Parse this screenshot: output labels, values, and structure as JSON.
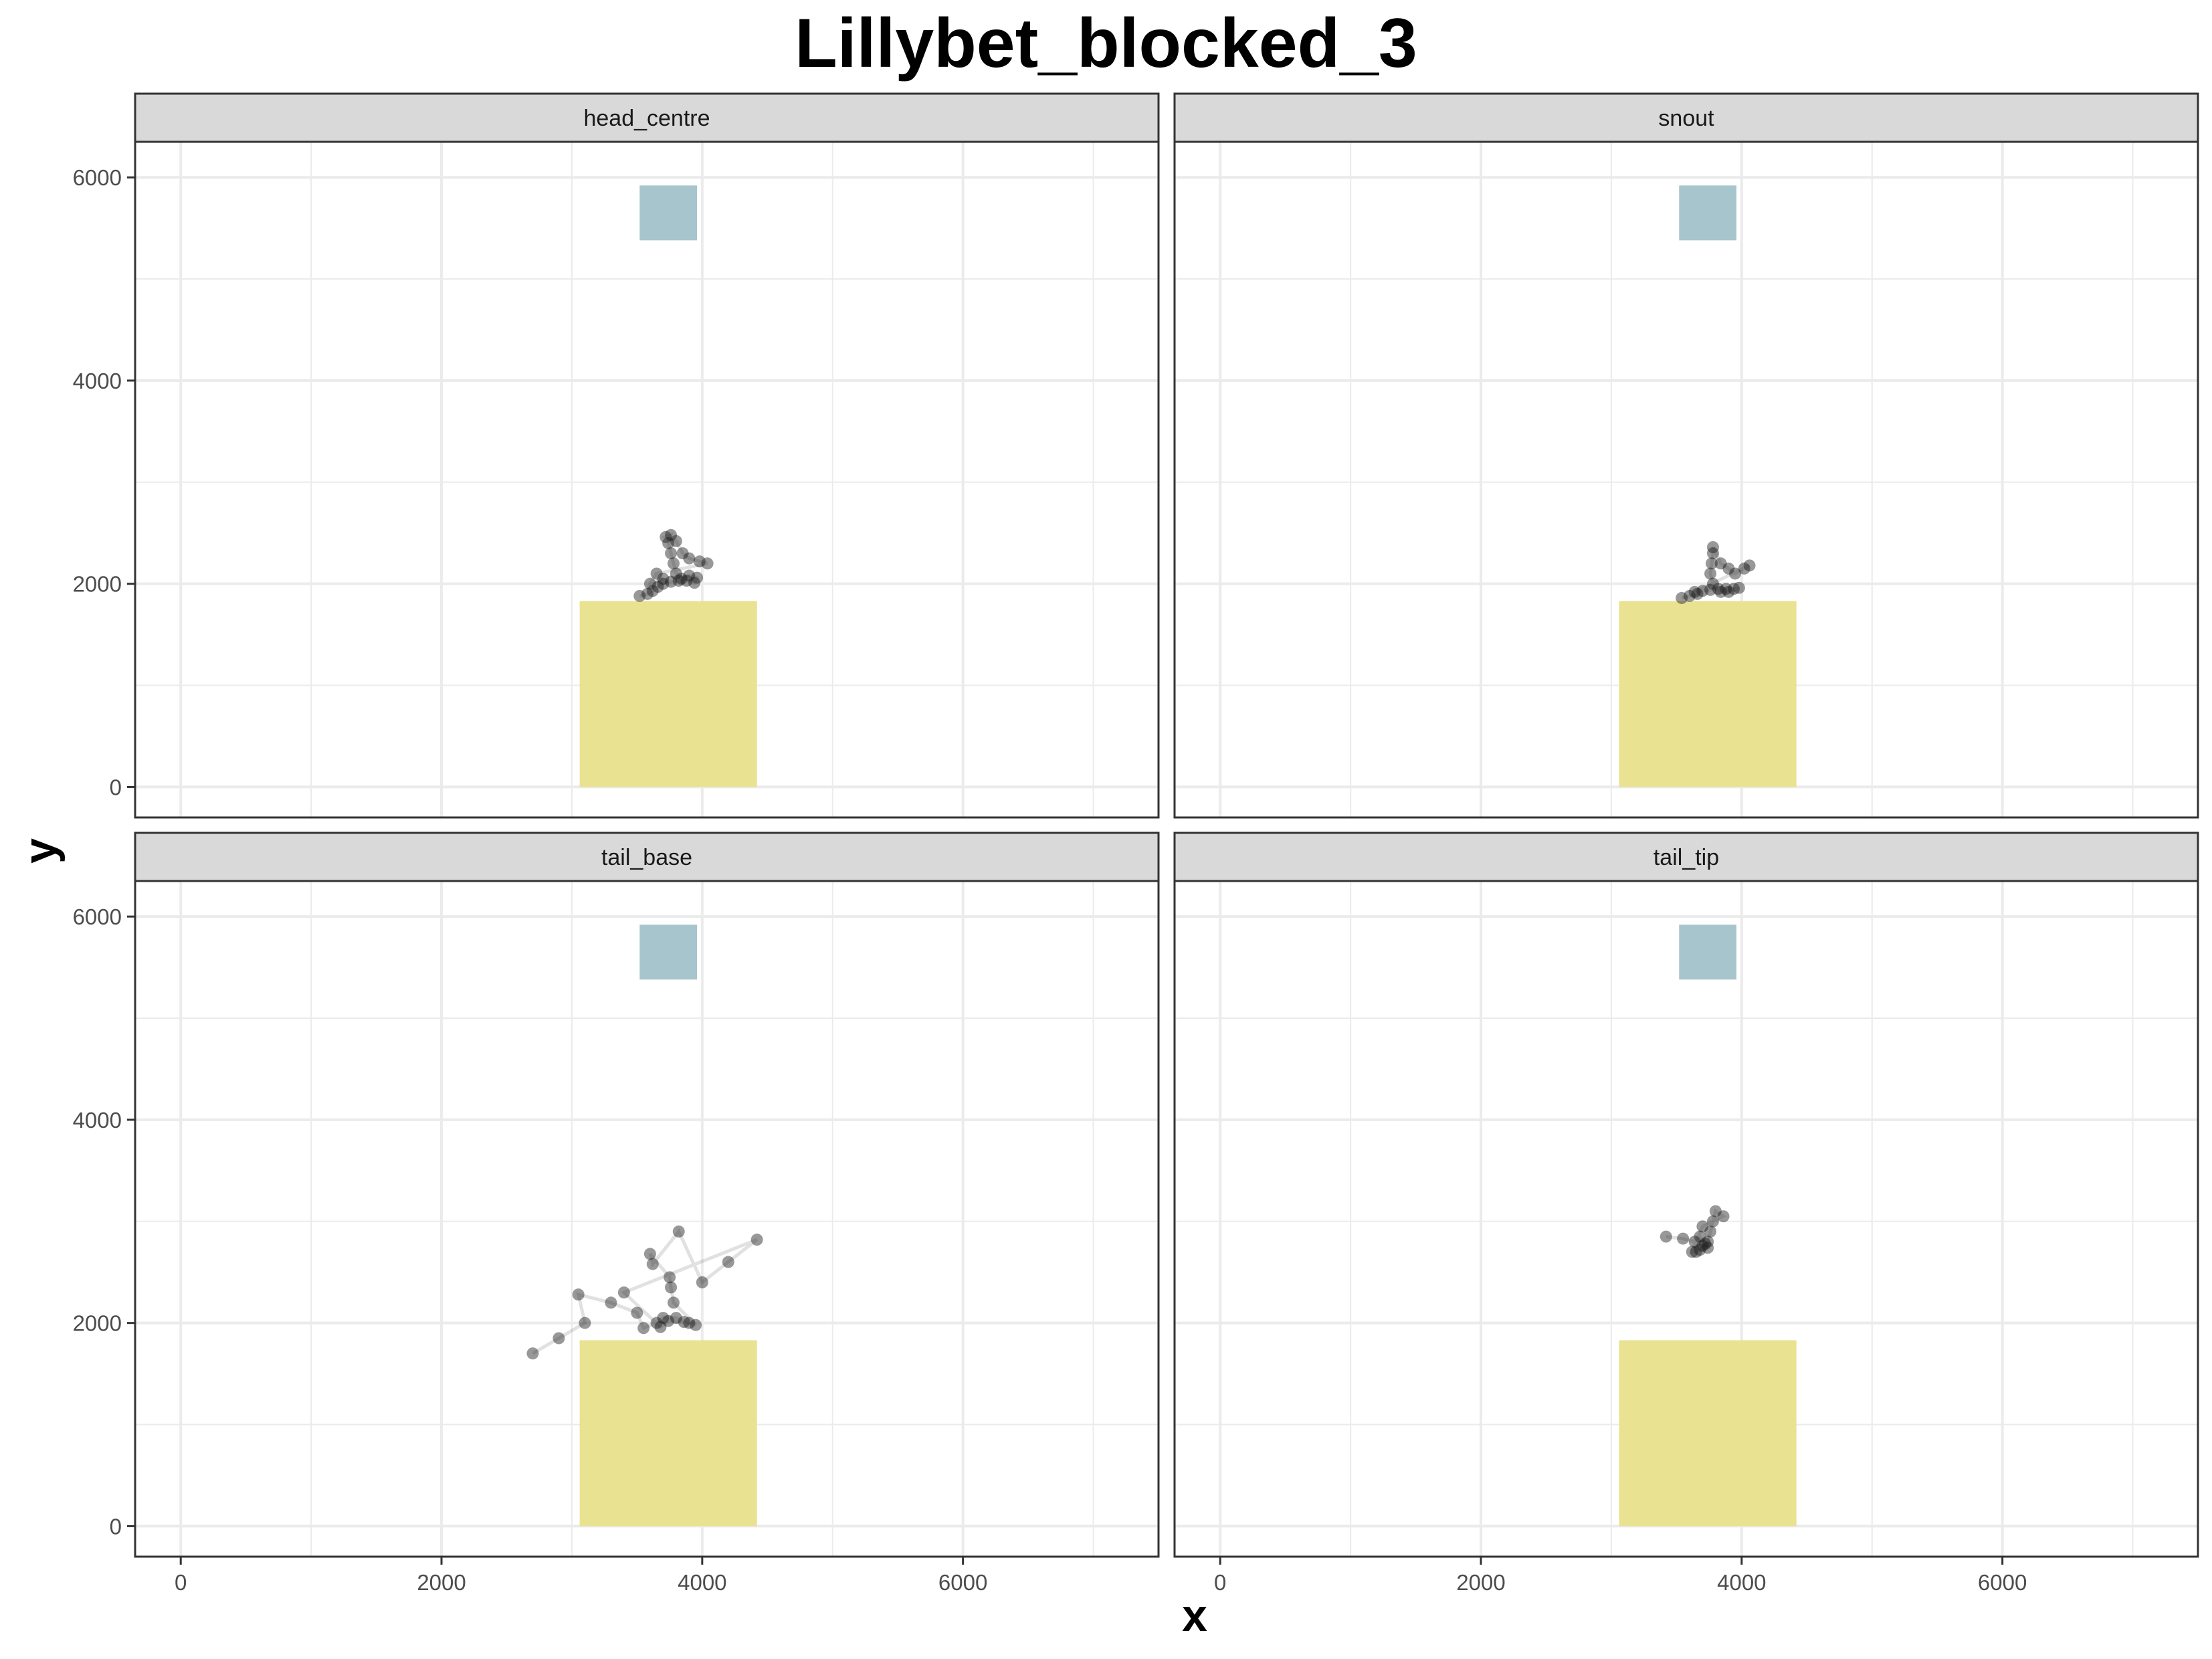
{
  "chart_data": {
    "type": "scatter",
    "title": "Lillybet_blocked_3",
    "xlabel": "x",
    "ylabel": "y",
    "xlim": [
      -350,
      7500
    ],
    "ylim": [
      -300,
      6350
    ],
    "x_ticks": [
      0,
      2000,
      4000,
      6000
    ],
    "y_ticks": [
      0,
      2000,
      4000,
      6000
    ],
    "x_tick_labels": [
      "0",
      "2000",
      "4000",
      "6000"
    ],
    "y_tick_labels": [
      "0",
      "2000",
      "4000",
      "6000"
    ],
    "grid": true,
    "legend": "none",
    "colors": {
      "points": "#1a1a1a",
      "blue_zone": "#a7c5cc",
      "yellow_zone": "#e8e291",
      "strip": "#d9d9d9",
      "grid": "#ebebeb"
    },
    "zones": [
      {
        "color": "blue_zone",
        "x": [
          3520,
          3960
        ],
        "y": [
          5380,
          5920
        ]
      },
      {
        "color": "yellow_zone",
        "x": [
          3060,
          4420
        ],
        "y": [
          0,
          1830
        ]
      }
    ],
    "panels": [
      {
        "name": "head_centre",
        "points": [
          [
            3520,
            1880
          ],
          [
            3580,
            1900
          ],
          [
            3620,
            1930
          ],
          [
            3660,
            1970
          ],
          [
            3700,
            2000
          ],
          [
            3760,
            2020
          ],
          [
            3820,
            2030
          ],
          [
            3880,
            2030
          ],
          [
            3940,
            2010
          ],
          [
            3960,
            2060
          ],
          [
            3900,
            2080
          ],
          [
            3840,
            2050
          ],
          [
            3800,
            2100
          ],
          [
            3780,
            2200
          ],
          [
            3760,
            2300
          ],
          [
            3740,
            2400
          ],
          [
            3760,
            2480
          ],
          [
            3720,
            2460
          ],
          [
            3800,
            2420
          ],
          [
            3850,
            2300
          ],
          [
            3900,
            2250
          ],
          [
            3980,
            2220
          ],
          [
            4040,
            2200
          ],
          [
            3650,
            2100
          ],
          [
            3600,
            2000
          ],
          [
            3700,
            2050
          ]
        ]
      },
      {
        "name": "snout",
        "points": [
          [
            3540,
            1860
          ],
          [
            3600,
            1880
          ],
          [
            3660,
            1900
          ],
          [
            3700,
            1930
          ],
          [
            3760,
            1940
          ],
          [
            3820,
            1950
          ],
          [
            3880,
            1950
          ],
          [
            3940,
            1950
          ],
          [
            3980,
            1960
          ],
          [
            3900,
            1920
          ],
          [
            3840,
            1920
          ],
          [
            3780,
            2000
          ],
          [
            3760,
            2100
          ],
          [
            3770,
            2200
          ],
          [
            3780,
            2300
          ],
          [
            3780,
            2360
          ],
          [
            3840,
            2200
          ],
          [
            3900,
            2150
          ],
          [
            3950,
            2100
          ],
          [
            4020,
            2150
          ],
          [
            4060,
            2180
          ],
          [
            3640,
            1920
          ]
        ]
      },
      {
        "name": "tail_base",
        "points": [
          [
            2700,
            1700
          ],
          [
            2900,
            1850
          ],
          [
            3100,
            2000
          ],
          [
            3050,
            2280
          ],
          [
            3300,
            2200
          ],
          [
            3500,
            2100
          ],
          [
            3550,
            1950
          ],
          [
            3650,
            2000
          ],
          [
            3700,
            2050
          ],
          [
            3800,
            2050
          ],
          [
            3900,
            2000
          ],
          [
            3950,
            1980
          ],
          [
            3780,
            2200
          ],
          [
            3760,
            2350
          ],
          [
            3750,
            2450
          ],
          [
            3600,
            2680
          ],
          [
            3620,
            2580
          ],
          [
            3820,
            2900
          ],
          [
            4000,
            2400
          ],
          [
            4200,
            2600
          ],
          [
            4420,
            2820
          ],
          [
            3400,
            2300
          ],
          [
            3680,
            1960
          ],
          [
            3740,
            2020
          ],
          [
            3860,
            2010
          ]
        ]
      },
      {
        "name": "tail_tip",
        "points": [
          [
            3420,
            2850
          ],
          [
            3550,
            2830
          ],
          [
            3640,
            2800
          ],
          [
            3650,
            2700
          ],
          [
            3680,
            2720
          ],
          [
            3700,
            2760
          ],
          [
            3720,
            2780
          ],
          [
            3740,
            2800
          ],
          [
            3760,
            2900
          ],
          [
            3780,
            3000
          ],
          [
            3800,
            3100
          ],
          [
            3860,
            3050
          ],
          [
            3700,
            2950
          ],
          [
            3620,
            2700
          ],
          [
            3740,
            2740
          ],
          [
            3680,
            2850
          ]
        ]
      }
    ]
  }
}
